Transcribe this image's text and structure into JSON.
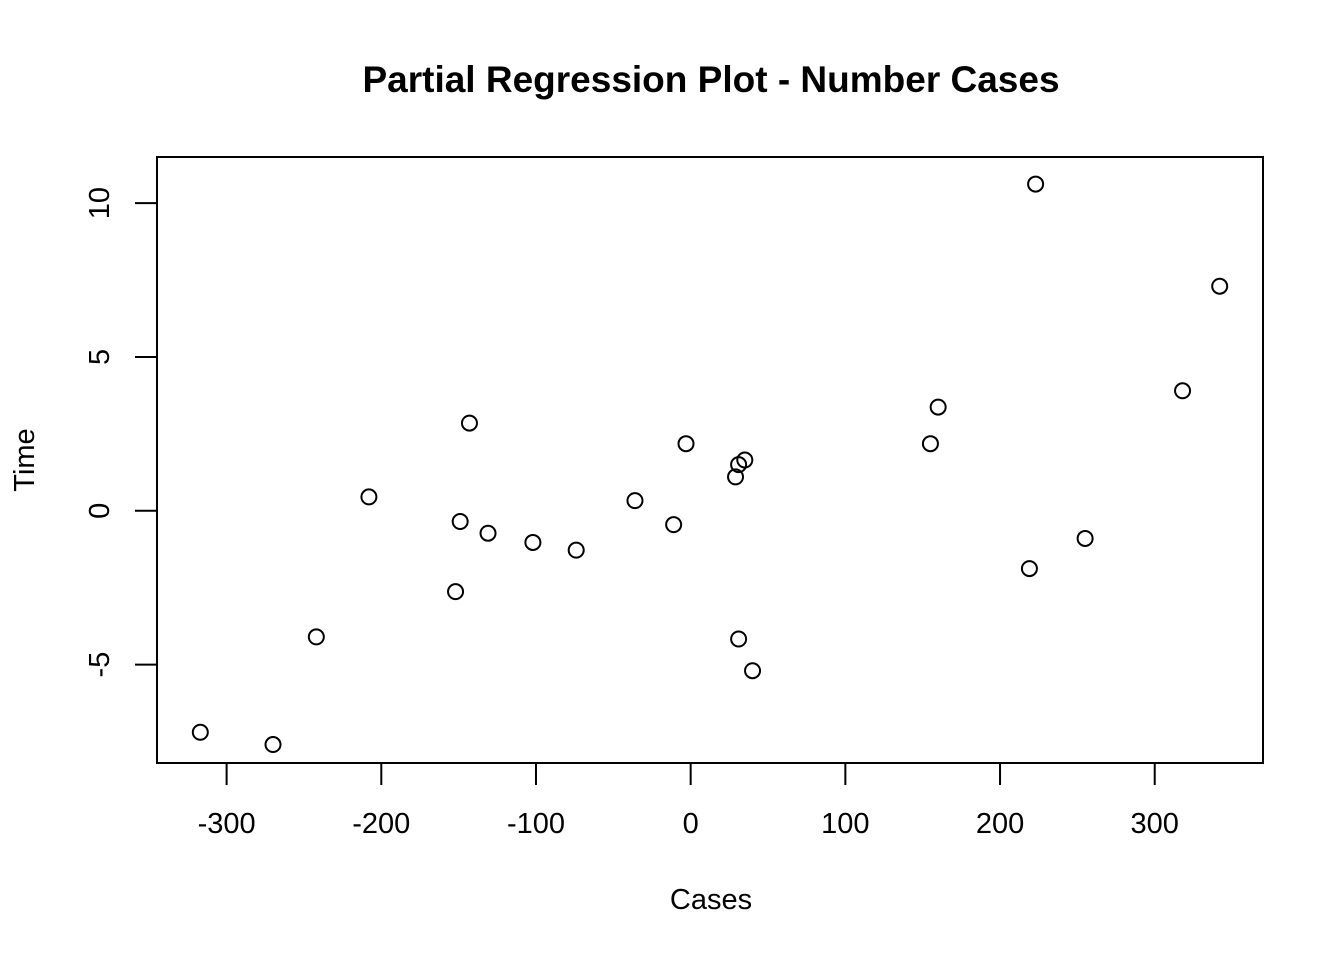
{
  "chart_data": {
    "type": "scatter",
    "title": "Partial Regression Plot - Number Cases",
    "xlabel": "Cases",
    "ylabel": "Time",
    "xlim": [
      -345,
      370
    ],
    "ylim": [
      -8.2,
      11.5
    ],
    "x_ticks": [
      -300,
      -200,
      -100,
      0,
      100,
      200,
      300
    ],
    "y_ticks": [
      -5,
      0,
      5,
      10
    ],
    "grid": false,
    "points": [
      {
        "x": -317,
        "y": -7.2
      },
      {
        "x": -270,
        "y": -7.6
      },
      {
        "x": -242,
        "y": -4.1
      },
      {
        "x": -208,
        "y": 0.45
      },
      {
        "x": -152,
        "y": -2.63
      },
      {
        "x": -149,
        "y": -0.35
      },
      {
        "x": -143,
        "y": 2.85
      },
      {
        "x": -131,
        "y": -0.73
      },
      {
        "x": -102,
        "y": -1.03
      },
      {
        "x": -74,
        "y": -1.28
      },
      {
        "x": -36,
        "y": 0.33
      },
      {
        "x": -11,
        "y": -0.45
      },
      {
        "x": -3,
        "y": 2.18
      },
      {
        "x": 29,
        "y": 1.1
      },
      {
        "x": 31,
        "y": 1.5
      },
      {
        "x": 31,
        "y": -4.17
      },
      {
        "x": 35,
        "y": 1.65
      },
      {
        "x": 40,
        "y": -5.2
      },
      {
        "x": 155,
        "y": 2.18
      },
      {
        "x": 160,
        "y": 3.37
      },
      {
        "x": 219,
        "y": -1.88
      },
      {
        "x": 223,
        "y": 10.62
      },
      {
        "x": 255,
        "y": -0.9
      },
      {
        "x": 318,
        "y": 3.9
      },
      {
        "x": 342,
        "y": 7.3
      }
    ]
  }
}
